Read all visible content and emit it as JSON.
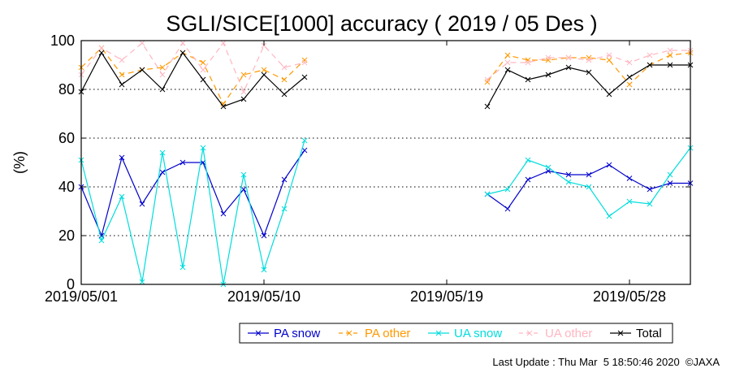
{
  "chart_data": {
    "type": "line",
    "title": "SGLI/SICE[1000] accuracy ( 2019 / 05 Des )",
    "ylabel": "(%)",
    "xlabel": "",
    "ylim": [
      0,
      100
    ],
    "yticks": [
      "0",
      "20",
      "40",
      "60",
      "80",
      "100"
    ],
    "xrange": [
      "2019-05-01",
      "2019-05-31"
    ],
    "xticks": [
      {
        "date": "2019-05-01",
        "label": "2019/05/01"
      },
      {
        "date": "2019-05-10",
        "label": "2019/05/10"
      },
      {
        "date": "2019-05-19",
        "label": "2019/05/19"
      },
      {
        "date": "2019-05-28",
        "label": "2019/05/28"
      }
    ],
    "grid": "horizontal dotted",
    "legend_position": "bottom",
    "series": [
      {
        "name": "PA snow",
        "color": "#0000cc",
        "dash": "solid",
        "segments": [
          [
            [
              "2019-05-01",
              40
            ],
            [
              "2019-05-02",
              20
            ],
            [
              "2019-05-03",
              52
            ],
            [
              "2019-05-04",
              33
            ],
            [
              "2019-05-05",
              46
            ],
            [
              "2019-05-06",
              50
            ],
            [
              "2019-05-07",
              50
            ],
            [
              "2019-05-08",
              29
            ],
            [
              "2019-05-09",
              39
            ],
            [
              "2019-05-10",
              20
            ],
            [
              "2019-05-11",
              43
            ],
            [
              "2019-05-12",
              55
            ]
          ],
          [
            [
              "2019-05-21",
              37
            ],
            [
              "2019-05-22",
              31
            ],
            [
              "2019-05-23",
              43
            ],
            [
              "2019-05-24",
              46.5
            ],
            [
              "2019-05-25",
              45
            ],
            [
              "2019-05-26",
              45
            ],
            [
              "2019-05-27",
              49
            ],
            [
              "2019-05-28",
              43.5
            ],
            [
              "2019-05-29",
              39
            ],
            [
              "2019-05-30",
              41.5
            ],
            [
              "2019-05-31",
              41.5
            ]
          ]
        ]
      },
      {
        "name": "PA other",
        "color": "#ff9900",
        "dash": "dashed",
        "segments": [
          [
            [
              "2019-05-01",
              89
            ],
            [
              "2019-05-02",
              97
            ],
            [
              "2019-05-03",
              86
            ],
            [
              "2019-05-04",
              88
            ],
            [
              "2019-05-05",
              89
            ],
            [
              "2019-05-06",
              95
            ],
            [
              "2019-05-07",
              91
            ],
            [
              "2019-05-08",
              74
            ],
            [
              "2019-05-09",
              86
            ],
            [
              "2019-05-10",
              88
            ],
            [
              "2019-05-11",
              84
            ],
            [
              "2019-05-12",
              92
            ]
          ],
          [
            [
              "2019-05-21",
              83
            ],
            [
              "2019-05-22",
              94
            ],
            [
              "2019-05-23",
              92
            ],
            [
              "2019-05-24",
              92
            ],
            [
              "2019-05-25",
              93
            ],
            [
              "2019-05-26",
              93
            ],
            [
              "2019-05-27",
              92
            ],
            [
              "2019-05-28",
              82
            ],
            [
              "2019-05-29",
              90
            ],
            [
              "2019-05-30",
              94
            ],
            [
              "2019-05-31",
              95
            ]
          ]
        ]
      },
      {
        "name": "UA snow",
        "color": "#00dddd",
        "dash": "solid",
        "segments": [
          [
            [
              "2019-05-01",
              51
            ],
            [
              "2019-05-02",
              18
            ],
            [
              "2019-05-03",
              36
            ],
            [
              "2019-05-04",
              1
            ],
            [
              "2019-05-05",
              54
            ],
            [
              "2019-05-06",
              7
            ],
            [
              "2019-05-07",
              56
            ],
            [
              "2019-05-08",
              0
            ],
            [
              "2019-05-09",
              45
            ],
            [
              "2019-05-10",
              6
            ],
            [
              "2019-05-11",
              31
            ],
            [
              "2019-05-12",
              59
            ]
          ],
          [
            [
              "2019-05-21",
              37
            ],
            [
              "2019-05-22",
              39
            ],
            [
              "2019-05-23",
              51
            ],
            [
              "2019-05-24",
              48
            ],
            [
              "2019-05-25",
              42
            ],
            [
              "2019-05-26",
              40
            ],
            [
              "2019-05-27",
              28
            ],
            [
              "2019-05-28",
              34
            ],
            [
              "2019-05-29",
              33
            ],
            [
              "2019-05-30",
              45
            ],
            [
              "2019-05-31",
              56
            ]
          ]
        ]
      },
      {
        "name": "UA other",
        "color": "#ffb6c1",
        "dash": "dashed",
        "segments": [
          [
            [
              "2019-05-01",
              86
            ],
            [
              "2019-05-02",
              97
            ],
            [
              "2019-05-03",
              92
            ],
            [
              "2019-05-04",
              99
            ],
            [
              "2019-05-05",
              86
            ],
            [
              "2019-05-06",
              99
            ],
            [
              "2019-05-07",
              88
            ],
            [
              "2019-05-08",
              99
            ],
            [
              "2019-05-09",
              79
            ],
            [
              "2019-05-10",
              98
            ],
            [
              "2019-05-11",
              89
            ],
            [
              "2019-05-12",
              91
            ]
          ],
          [
            [
              "2019-05-21",
              84
            ],
            [
              "2019-05-22",
              91
            ],
            [
              "2019-05-23",
              91
            ],
            [
              "2019-05-24",
              93
            ],
            [
              "2019-05-25",
              93
            ],
            [
              "2019-05-26",
              92
            ],
            [
              "2019-05-27",
              94
            ],
            [
              "2019-05-28",
              91
            ],
            [
              "2019-05-29",
              94
            ],
            [
              "2019-05-30",
              96
            ],
            [
              "2019-05-31",
              96
            ]
          ]
        ]
      },
      {
        "name": "Total",
        "color": "#000000",
        "dash": "solid",
        "segments": [
          [
            [
              "2019-05-01",
              79
            ],
            [
              "2019-05-02",
              95
            ],
            [
              "2019-05-03",
              82
            ],
            [
              "2019-05-04",
              88
            ],
            [
              "2019-05-05",
              80
            ],
            [
              "2019-05-06",
              95
            ],
            [
              "2019-05-07",
              84
            ],
            [
              "2019-05-08",
              73
            ],
            [
              "2019-05-09",
              76
            ],
            [
              "2019-05-10",
              86
            ],
            [
              "2019-05-11",
              78
            ],
            [
              "2019-05-12",
              85
            ]
          ],
          [
            [
              "2019-05-21",
              73
            ],
            [
              "2019-05-22",
              88
            ],
            [
              "2019-05-23",
              84
            ],
            [
              "2019-05-24",
              86
            ],
            [
              "2019-05-25",
              89
            ],
            [
              "2019-05-26",
              87
            ],
            [
              "2019-05-27",
              78
            ],
            [
              "2019-05-28",
              85
            ],
            [
              "2019-05-29",
              90
            ],
            [
              "2019-05-30",
              90
            ],
            [
              "2019-05-31",
              90
            ]
          ]
        ]
      }
    ]
  },
  "footer": {
    "last_update": "Last Update : Thu Mar  5 18:50:46 2020  ©JAXA"
  }
}
